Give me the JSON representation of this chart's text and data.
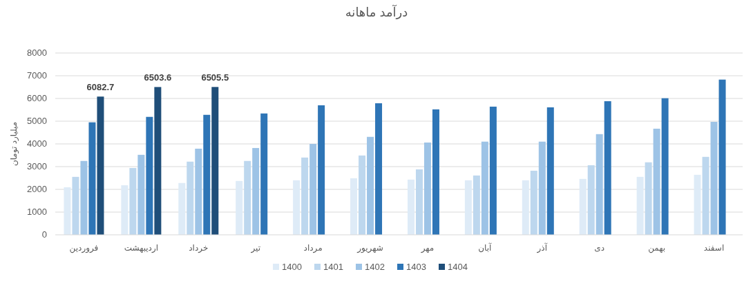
{
  "chart_data": {
    "type": "bar",
    "title": "درآمد ماهانه",
    "ylabel": "میلیارد تومان",
    "categories": [
      "فروردین",
      "اردیبهشت",
      "خرداد",
      "تیر",
      "مرداد",
      "شهریور",
      "مهر",
      "آبان",
      "آذر",
      "دی",
      "بهمن",
      "اسفند"
    ],
    "series": [
      {
        "name": "1400",
        "color": "#deebf7",
        "values": [
          2090,
          2180,
          2280,
          2370,
          2400,
          2490,
          2430,
          2400,
          2400,
          2460,
          2550,
          2640
        ]
      },
      {
        "name": "1401",
        "color": "#bdd7ee",
        "values": [
          2550,
          2940,
          3220,
          3250,
          3400,
          3490,
          2880,
          2610,
          2820,
          3060,
          3190,
          3430
        ]
      },
      {
        "name": "1402",
        "color": "#9dc3e6",
        "values": [
          3250,
          3520,
          3790,
          3820,
          4000,
          4310,
          4060,
          4100,
          4100,
          4430,
          4670,
          4970
        ]
      },
      {
        "name": "1403",
        "color": "#2e75b6",
        "values": [
          4950,
          5190,
          5280,
          5340,
          5700,
          5790,
          5520,
          5640,
          5610,
          5880,
          6010,
          6830
        ]
      },
      {
        "name": "1404",
        "color": "#1f4e79",
        "values": [
          6082.7,
          6503.6,
          6505.5,
          null,
          null,
          null,
          null,
          null,
          null,
          null,
          null,
          null
        ],
        "value_labels": [
          "6082.7",
          "6503.6",
          "6505.5",
          null,
          null,
          null,
          null,
          null,
          null,
          null,
          null,
          null
        ]
      }
    ],
    "ylim": [
      0,
      8000
    ],
    "yticks": [
      0,
      1000,
      2000,
      3000,
      4000,
      5000,
      6000,
      7000,
      8000
    ],
    "grid": "y",
    "legend": "bottom"
  }
}
